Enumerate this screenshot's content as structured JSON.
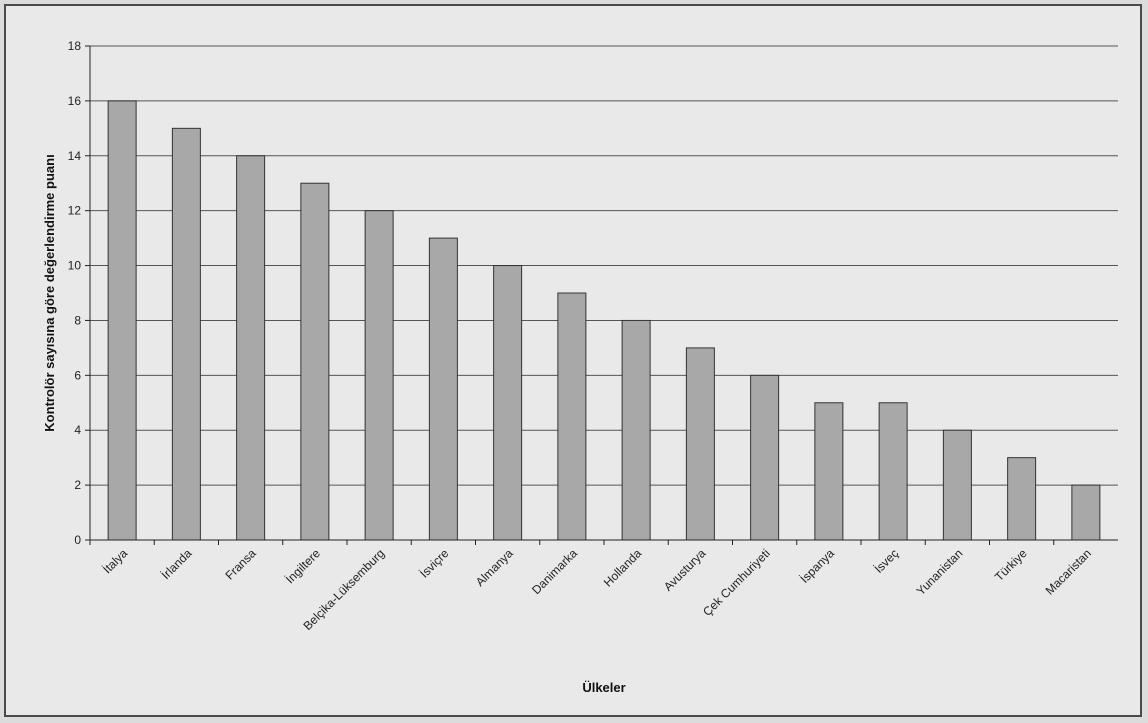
{
  "chart_data": {
    "type": "bar",
    "title": "",
    "xlabel": "Ülkeler",
    "ylabel": "Kontrolör sayısına göre değerlendirme puanı",
    "ylim": [
      0,
      18
    ],
    "ytick_step": 2,
    "grid": true,
    "categories": [
      "İtalya",
      "İrlanda",
      "Fransa",
      "İngiltere",
      "Belçika-Lüksemburg",
      "İsviçre",
      "Almanya",
      "Danimarka",
      "Hollanda",
      "Avusturya",
      "Çek Cumhuriyeti",
      "İspanya",
      "İsveç",
      "Yunanistan",
      "Türkiye",
      "Macaristan"
    ],
    "values": [
      16,
      15,
      14,
      13,
      12,
      11,
      10,
      9,
      8,
      7,
      6,
      5,
      5,
      4,
      3,
      2
    ],
    "bar_color": "#a8a8a8",
    "background_color": "#e9e9e9"
  }
}
